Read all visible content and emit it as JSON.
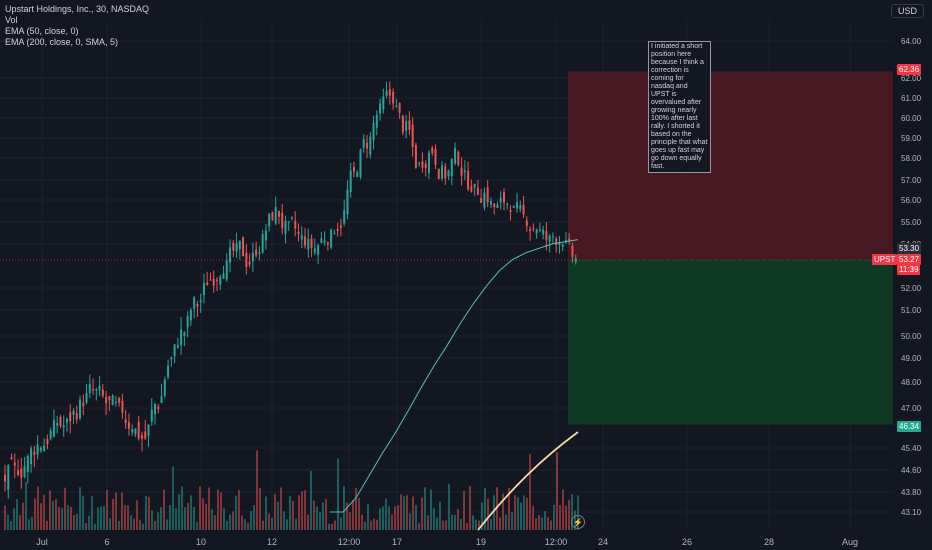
{
  "header": {
    "symbol_line": "Upstart Holdings, Inc., 30, NASDAQ",
    "vol_label": "Vol",
    "ema50_label": "EMA (50, close, 0)",
    "ema200_label": "EMA (200, close, 0, SMA, 5)",
    "currency_button": "USD"
  },
  "note": {
    "text": "I initiated a short position here because I think a correction is coming for nasdaq and UPST is overvalued after growing nearly 100% after last rally. I shorted it based on the principle that what goes up fast may go down equally fast."
  },
  "price_axis": {
    "ticks": [
      "64.00",
      "62.00",
      "61.00",
      "60.00",
      "59.00",
      "58.00",
      "57.00",
      "56.00",
      "55.00",
      "54.00",
      "52.00",
      "51.00",
      "50.00",
      "49.00",
      "48.00",
      "47.00",
      "45.40",
      "44.60",
      "43.80",
      "43.10"
    ],
    "tick_values": [
      64,
      62,
      61,
      60,
      59,
      58,
      57,
      56,
      55,
      54,
      52,
      51,
      50,
      49,
      48,
      47,
      45.4,
      44.6,
      43.8,
      43.1
    ]
  },
  "time_axis": {
    "labels": [
      "Jul",
      "6",
      "10",
      "12",
      "12:00",
      "17",
      "19",
      "12:00",
      "24",
      "26",
      "28",
      "Aug"
    ]
  },
  "position": {
    "stop_label": "62.36",
    "entry_label": "53.30",
    "symbol_tag": "UPST",
    "last_price": "53.27",
    "countdown": "11:39",
    "target_label": "46.34",
    "stop_value": 62.36,
    "entry_value": 53.3,
    "target_value": 46.34,
    "colors": {
      "loss": "#4d1a22",
      "profit": "#0e3d22",
      "up": "#26a69a",
      "down": "#ef5350"
    }
  },
  "chart_data": {
    "type": "candlestick",
    "title": "Upstart Holdings, Inc., 30, NASDAQ",
    "series": [
      {
        "name": "UPST",
        "values": [
          44.5,
          44.9,
          45.6,
          46.1,
          46.3,
          47.0,
          47.6,
          47.2,
          46.8,
          46.4,
          45.8,
          47.2,
          48.9,
          50.2,
          51.3,
          52.4,
          53.1,
          53.6,
          53.2,
          54.1,
          55.4,
          54.6,
          54.2,
          53.8,
          54.4,
          55.0,
          57.2,
          58.8,
          60.3,
          61.1,
          59.4,
          57.6,
          58.4,
          57.3,
          58.1,
          56.8,
          56.3,
          55.6,
          55.9,
          55.2,
          54.8,
          54.1,
          54.3,
          53.27
        ]
      },
      {
        "name": "EMA (50, close, 0)",
        "values": [
          42.0,
          42.8,
          43.6,
          44.4,
          45.2,
          46.0,
          46.9,
          47.8,
          48.7,
          49.6,
          50.5,
          51.3,
          52.1,
          52.8,
          53.3,
          53.6,
          53.8,
          54.0,
          54.1,
          54.2
        ]
      }
    ],
    "ylim": [
      43.0,
      64.8
    ]
  }
}
